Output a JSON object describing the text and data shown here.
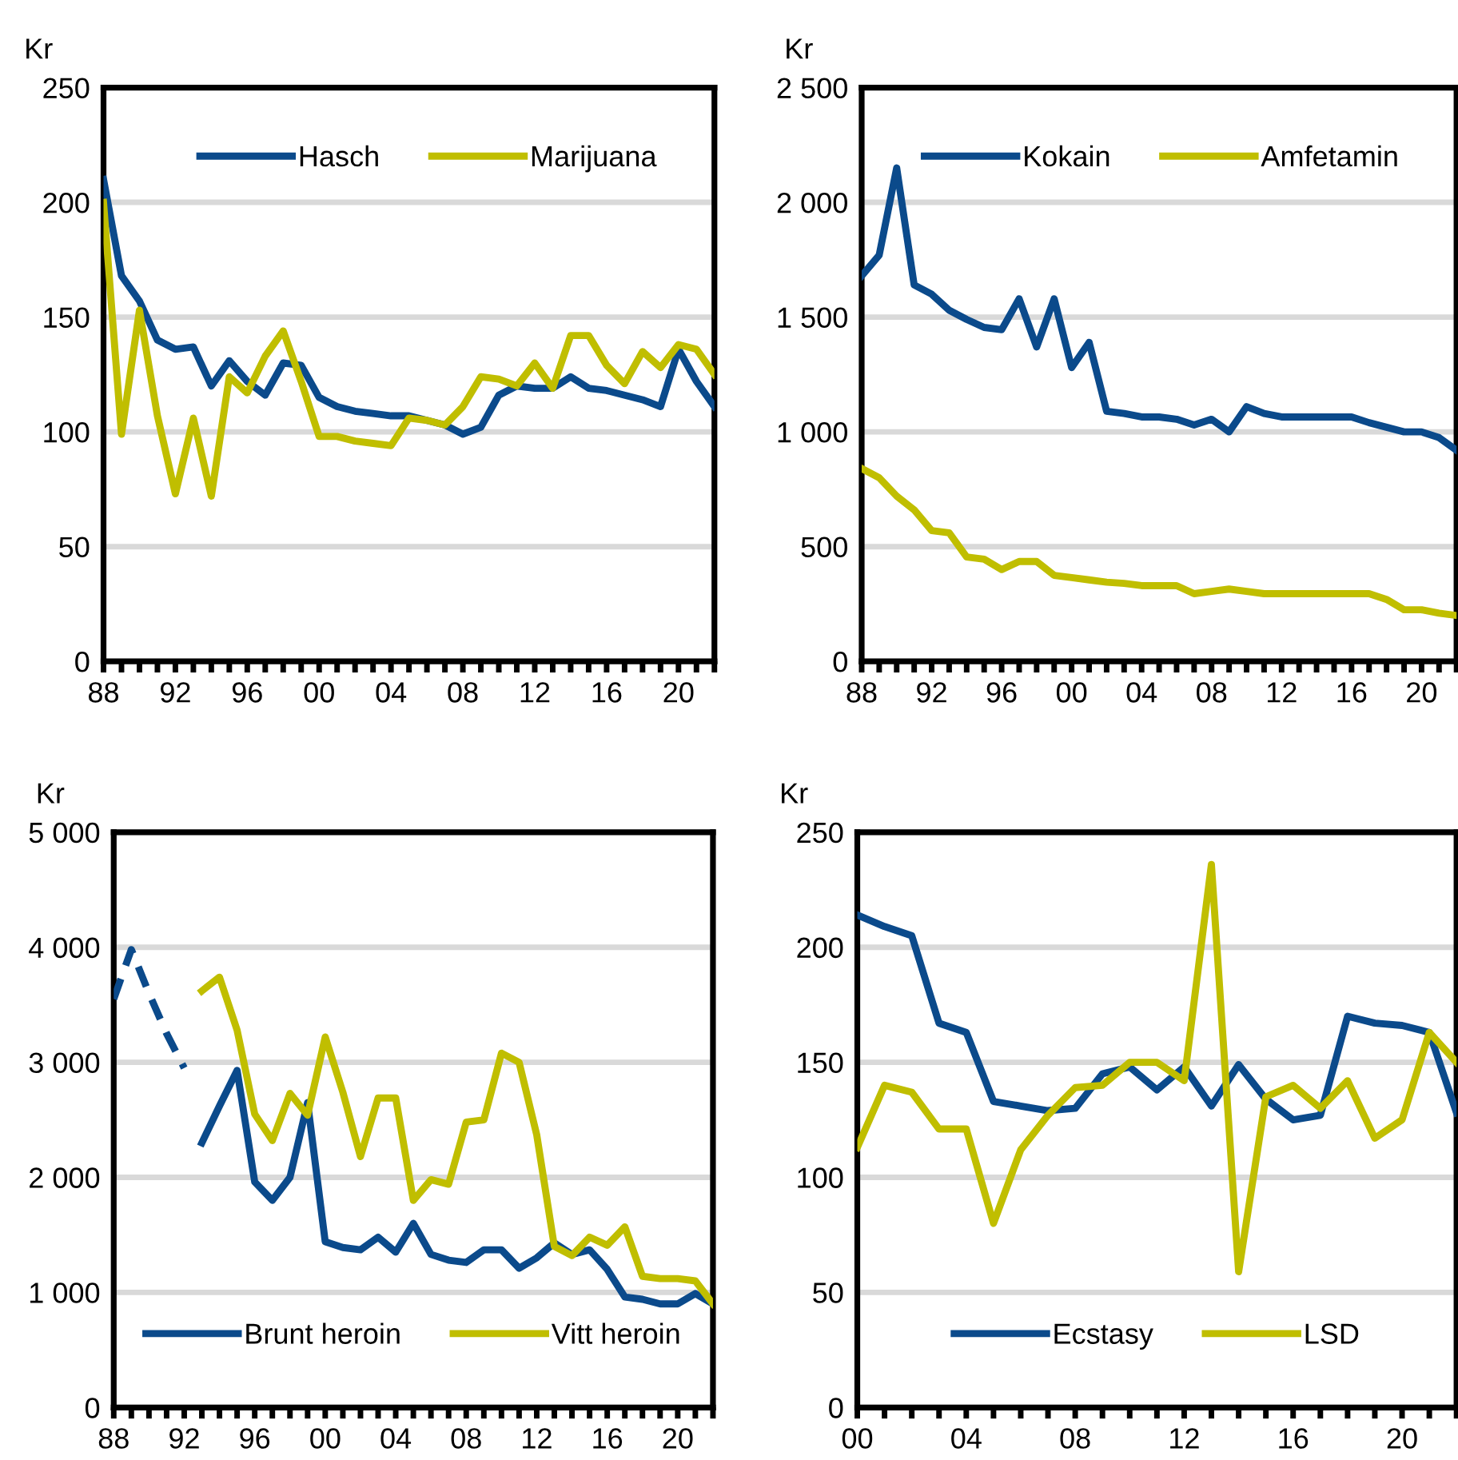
{
  "chart_data": [
    {
      "type": "line",
      "ylabel": "Kr",
      "legend": "top right",
      "grid": "y",
      "line_style": "solid",
      "x": [
        1988,
        1989,
        1990,
        1991,
        1992,
        1993,
        1994,
        1995,
        1996,
        1997,
        1998,
        1999,
        2000,
        2001,
        2002,
        2003,
        2004,
        2005,
        2006,
        2007,
        2008,
        2009,
        2010,
        2011,
        2012,
        2013,
        2014,
        2015,
        2016,
        2017,
        2018,
        2019,
        2020,
        2021,
        2022
      ],
      "series": [
        {
          "name": "Hasch",
          "color": "#0b4a8b",
          "values": [
            210,
            168,
            157,
            140,
            136,
            137,
            120,
            131,
            122,
            116,
            130,
            129,
            115,
            111,
            109,
            108,
            107,
            107,
            105,
            103,
            99,
            102,
            116,
            120,
            119,
            119,
            124,
            119,
            118,
            116,
            114,
            111,
            136,
            122,
            111
          ]
        },
        {
          "name": "Marijuana",
          "color": "#c0be00",
          "values": [
            200,
            99,
            153,
            107,
            73,
            106,
            72,
            124,
            117,
            133,
            144,
            122,
            98,
            98,
            96,
            95,
            94,
            106,
            105,
            103,
            111,
            124,
            123,
            120,
            130,
            119,
            142,
            142,
            129,
            121,
            135,
            128,
            138,
            136,
            125
          ]
        }
      ],
      "xlim": [
        1988,
        2022
      ],
      "xticks": [
        {
          "value": 1988,
          "label": "88"
        },
        {
          "value": 1989,
          "label": null
        },
        {
          "value": 1990,
          "label": null
        },
        {
          "value": 1991,
          "label": null
        },
        {
          "value": 1992,
          "label": "92"
        },
        {
          "value": 1993,
          "label": null
        },
        {
          "value": 1994,
          "label": null
        },
        {
          "value": 1995,
          "label": null
        },
        {
          "value": 1996,
          "label": "96"
        },
        {
          "value": 1997,
          "label": null
        },
        {
          "value": 1998,
          "label": null
        },
        {
          "value": 1999,
          "label": null
        },
        {
          "value": 2000,
          "label": "00"
        },
        {
          "value": 2001,
          "label": null
        },
        {
          "value": 2002,
          "label": null
        },
        {
          "value": 2003,
          "label": null
        },
        {
          "value": 2004,
          "label": "04"
        },
        {
          "value": 2005,
          "label": null
        },
        {
          "value": 2006,
          "label": null
        },
        {
          "value": 2007,
          "label": null
        },
        {
          "value": 2008,
          "label": "08"
        },
        {
          "value": 2009,
          "label": null
        },
        {
          "value": 2010,
          "label": null
        },
        {
          "value": 2011,
          "label": null
        },
        {
          "value": 2012,
          "label": "12"
        },
        {
          "value": 2013,
          "label": null
        },
        {
          "value": 2014,
          "label": null
        },
        {
          "value": 2015,
          "label": null
        },
        {
          "value": 2016,
          "label": "16"
        },
        {
          "value": 2017,
          "label": null
        },
        {
          "value": 2018,
          "label": null
        },
        {
          "value": 2019,
          "label": null
        },
        {
          "value": 2020,
          "label": "20"
        },
        {
          "value": 2021,
          "label": null
        },
        {
          "value": 2022,
          "label": null
        }
      ],
      "ylim": [
        0,
        250
      ],
      "yticks": [
        0,
        50,
        100,
        150,
        200,
        250
      ]
    },
    {
      "type": "line",
      "ylabel": "Kr",
      "legend": "top right",
      "grid": "y",
      "line_style": "solid",
      "x": [
        1988,
        1989,
        1990,
        1991,
        1992,
        1993,
        1994,
        1995,
        1996,
        1997,
        1998,
        1999,
        2000,
        2001,
        2002,
        2003,
        2004,
        2005,
        2006,
        2007,
        2008,
        2009,
        2010,
        2011,
        2012,
        2013,
        2014,
        2015,
        2016,
        2017,
        2018,
        2019,
        2020,
        2021,
        2022
      ],
      "series": [
        {
          "name": "Kokain",
          "color": "#0b4a8b",
          "values": [
            1680,
            1770,
            2150,
            1640,
            1600,
            1530,
            1490,
            1455,
            1445,
            1580,
            1370,
            1580,
            1280,
            1390,
            1090,
            1080,
            1065,
            1065,
            1055,
            1030,
            1055,
            1000,
            1110,
            1080,
            1065,
            1065,
            1065,
            1065,
            1065,
            1040,
            1020,
            1000,
            1000,
            975,
            920
          ]
        },
        {
          "name": "Amfetamin",
          "color": "#c0be00",
          "values": [
            840,
            800,
            720,
            660,
            570,
            560,
            455,
            445,
            400,
            435,
            435,
            375,
            365,
            355,
            345,
            340,
            330,
            330,
            330,
            295,
            305,
            315,
            305,
            295,
            295,
            295,
            295,
            295,
            295,
            295,
            270,
            225,
            225,
            210,
            200
          ]
        }
      ],
      "xlim": [
        1988,
        2022
      ],
      "xticks": [
        {
          "value": 1988,
          "label": "88"
        },
        {
          "value": 1989,
          "label": null
        },
        {
          "value": 1990,
          "label": null
        },
        {
          "value": 1991,
          "label": null
        },
        {
          "value": 1992,
          "label": "92"
        },
        {
          "value": 1993,
          "label": null
        },
        {
          "value": 1994,
          "label": null
        },
        {
          "value": 1995,
          "label": null
        },
        {
          "value": 1996,
          "label": "96"
        },
        {
          "value": 1997,
          "label": null
        },
        {
          "value": 1998,
          "label": null
        },
        {
          "value": 1999,
          "label": null
        },
        {
          "value": 2000,
          "label": "00"
        },
        {
          "value": 2001,
          "label": null
        },
        {
          "value": 2002,
          "label": null
        },
        {
          "value": 2003,
          "label": null
        },
        {
          "value": 2004,
          "label": "04"
        },
        {
          "value": 2005,
          "label": null
        },
        {
          "value": 2006,
          "label": null
        },
        {
          "value": 2007,
          "label": null
        },
        {
          "value": 2008,
          "label": "08"
        },
        {
          "value": 2009,
          "label": null
        },
        {
          "value": 2010,
          "label": null
        },
        {
          "value": 2011,
          "label": null
        },
        {
          "value": 2012,
          "label": "12"
        },
        {
          "value": 2013,
          "label": null
        },
        {
          "value": 2014,
          "label": null
        },
        {
          "value": 2015,
          "label": null
        },
        {
          "value": 2016,
          "label": "16"
        },
        {
          "value": 2017,
          "label": null
        },
        {
          "value": 2018,
          "label": null
        },
        {
          "value": 2019,
          "label": null
        },
        {
          "value": 2020,
          "label": "20"
        },
        {
          "value": 2021,
          "label": null
        },
        {
          "value": 2022,
          "label": null
        }
      ],
      "ylim": [
        0,
        2500
      ],
      "yticks": [
        0,
        500,
        {
          "value": 1000,
          "label": "1 000"
        },
        {
          "value": 1500,
          "label": "1 500"
        },
        {
          "value": 2000,
          "label": "2 000"
        },
        {
          "value": 2500,
          "label": "2 500"
        }
      ]
    },
    {
      "type": "line",
      "ylabel": "Kr",
      "legend": "bottom",
      "grid": "y",
      "line_style": "solid",
      "series": [
        {
          "color": "#0b4a8b",
          "line_style": "dashed",
          "x": [
            1988,
            1989,
            1990,
            1991,
            1992
          ],
          "values": [
            3550,
            3980,
            3600,
            3250,
            2950
          ]
        },
        {
          "name": "Brunt heroin",
          "color": "#0b4a8b",
          "x": [
            1993,
            1994,
            1995,
            1996,
            1997,
            1998,
            1999,
            2000,
            2001,
            2002,
            2003,
            2004,
            2005,
            2006,
            2007,
            2008,
            2009,
            2010,
            2011,
            2012,
            2013,
            2014,
            2015,
            2016,
            2017,
            2018,
            2019,
            2020,
            2021,
            2022
          ],
          "values": [
            2300,
            2620,
            2930,
            1960,
            1800,
            2000,
            2650,
            1440,
            1390,
            1370,
            1480,
            1350,
            1600,
            1330,
            1280,
            1260,
            1370,
            1370,
            1210,
            1300,
            1430,
            1330,
            1370,
            1200,
            960,
            940,
            900,
            900,
            990,
            900
          ]
        },
        {
          "name": "Vitt heroin",
          "color": "#c0be00",
          "x": [
            1993,
            1994,
            1995,
            1996,
            1997,
            1998,
            1999,
            2000,
            2001,
            2002,
            2003,
            2004,
            2005,
            2006,
            2007,
            2008,
            2009,
            2010,
            2011,
            2012,
            2013,
            2014,
            2015,
            2016,
            2017,
            2018,
            2019,
            2020,
            2021,
            2022
          ],
          "values": [
            3620,
            3740,
            3280,
            2550,
            2320,
            2730,
            2540,
            3220,
            2740,
            2180,
            2690,
            2690,
            1800,
            1980,
            1940,
            2480,
            2500,
            3080,
            3000,
            2370,
            1400,
            1320,
            1480,
            1410,
            1570,
            1140,
            1120,
            1120,
            1100,
            900
          ]
        }
      ],
      "xlim": [
        1988,
        2022
      ],
      "xticks": [
        {
          "value": 1988,
          "label": "88"
        },
        {
          "value": 1989,
          "label": null
        },
        {
          "value": 1990,
          "label": null
        },
        {
          "value": 1991,
          "label": null
        },
        {
          "value": 1992,
          "label": "92"
        },
        {
          "value": 1993,
          "label": null
        },
        {
          "value": 1994,
          "label": null
        },
        {
          "value": 1995,
          "label": null
        },
        {
          "value": 1996,
          "label": "96"
        },
        {
          "value": 1997,
          "label": null
        },
        {
          "value": 1998,
          "label": null
        },
        {
          "value": 1999,
          "label": null
        },
        {
          "value": 2000,
          "label": "00"
        },
        {
          "value": 2001,
          "label": null
        },
        {
          "value": 2002,
          "label": null
        },
        {
          "value": 2003,
          "label": null
        },
        {
          "value": 2004,
          "label": "04"
        },
        {
          "value": 2005,
          "label": null
        },
        {
          "value": 2006,
          "label": null
        },
        {
          "value": 2007,
          "label": null
        },
        {
          "value": 2008,
          "label": "08"
        },
        {
          "value": 2009,
          "label": null
        },
        {
          "value": 2010,
          "label": null
        },
        {
          "value": 2011,
          "label": null
        },
        {
          "value": 2012,
          "label": "12"
        },
        {
          "value": 2013,
          "label": null
        },
        {
          "value": 2014,
          "label": null
        },
        {
          "value": 2015,
          "label": null
        },
        {
          "value": 2016,
          "label": "16"
        },
        {
          "value": 2017,
          "label": null
        },
        {
          "value": 2018,
          "label": null
        },
        {
          "value": 2019,
          "label": null
        },
        {
          "value": 2020,
          "label": "20"
        },
        {
          "value": 2021,
          "label": null
        },
        {
          "value": 2022,
          "label": null
        }
      ],
      "ylim": [
        0,
        5000
      ],
      "yticks": [
        0,
        {
          "value": 1000,
          "label": "1 000"
        },
        {
          "value": 2000,
          "label": "2 000"
        },
        {
          "value": 3000,
          "label": "3 000"
        },
        {
          "value": 4000,
          "label": "4 000"
        },
        {
          "value": 5000,
          "label": "5 000"
        }
      ]
    },
    {
      "type": "line",
      "ylabel": "Kr",
      "legend": "bottom",
      "grid": "y",
      "line_style": "solid",
      "x": [
        2000,
        2001,
        2002,
        2003,
        2004,
        2005,
        2006,
        2007,
        2008,
        2009,
        2010,
        2011,
        2012,
        2013,
        2014,
        2015,
        2016,
        2017,
        2018,
        2019,
        2020,
        2021,
        2022
      ],
      "series": [
        {
          "name": "Ecstasy",
          "color": "#0b4a8b",
          "values": [
            214,
            209,
            205,
            167,
            163,
            133,
            131,
            129,
            130,
            145,
            148,
            138,
            148,
            131,
            149,
            134,
            125,
            127,
            170,
            167,
            166,
            163,
            128
          ]
        },
        {
          "name": "LSD",
          "color": "#c0be00",
          "values": [
            113,
            140,
            137,
            121,
            121,
            80,
            112,
            127,
            139,
            140,
            150,
            150,
            142,
            236,
            59,
            135,
            140,
            130,
            142,
            117,
            125,
            163,
            150
          ]
        }
      ],
      "xlim": [
        2000,
        2022
      ],
      "xticks": [
        {
          "value": 2000,
          "label": "00"
        },
        {
          "value": 2001,
          "label": null
        },
        {
          "value": 2002,
          "label": null
        },
        {
          "value": 2003,
          "label": null
        },
        {
          "value": 2004,
          "label": "04"
        },
        {
          "value": 2005,
          "label": null
        },
        {
          "value": 2006,
          "label": null
        },
        {
          "value": 2007,
          "label": null
        },
        {
          "value": 2008,
          "label": "08"
        },
        {
          "value": 2009,
          "label": null
        },
        {
          "value": 2010,
          "label": null
        },
        {
          "value": 2011,
          "label": null
        },
        {
          "value": 2012,
          "label": "12"
        },
        {
          "value": 2013,
          "label": null
        },
        {
          "value": 2014,
          "label": null
        },
        {
          "value": 2015,
          "label": null
        },
        {
          "value": 2016,
          "label": "16"
        },
        {
          "value": 2017,
          "label": null
        },
        {
          "value": 2018,
          "label": null
        },
        {
          "value": 2019,
          "label": null
        },
        {
          "value": 2020,
          "label": "20"
        },
        {
          "value": 2021,
          "label": null
        },
        {
          "value": 2022,
          "label": null
        }
      ],
      "ylim": [
        0,
        250
      ],
      "yticks": [
        0,
        50,
        100,
        150,
        200,
        250
      ]
    }
  ]
}
